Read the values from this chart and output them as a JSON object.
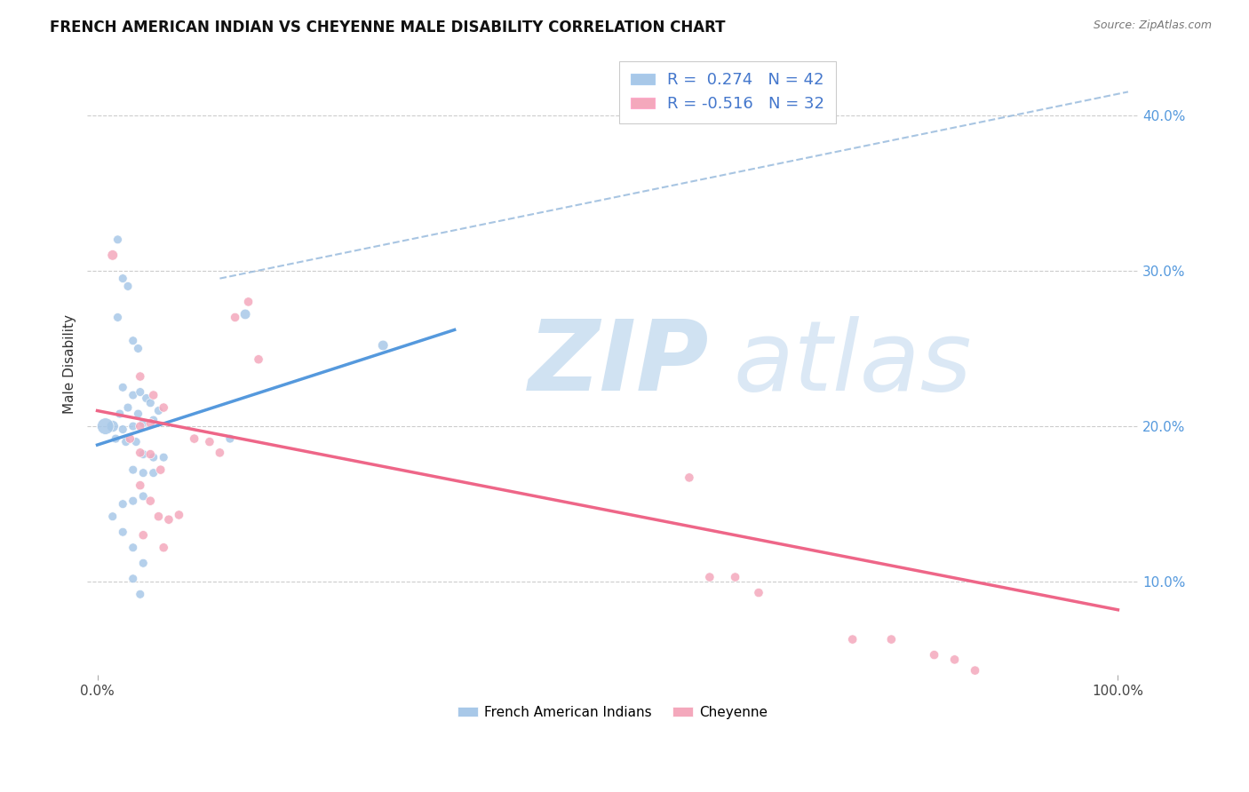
{
  "title": "FRENCH AMERICAN INDIAN VS CHEYENNE MALE DISABILITY CORRELATION CHART",
  "source": "Source: ZipAtlas.com",
  "ylabel": "Male Disability",
  "french_R": 0.274,
  "french_N": 42,
  "cheyenne_R": -0.516,
  "cheyenne_N": 32,
  "french_color": "#a8c8e8",
  "cheyenne_color": "#f4a8bc",
  "french_line_color": "#5599dd",
  "cheyenne_line_color": "#ee6688",
  "dashed_line_color": "#99bbdd",
  "watermark_color": "#ddeeff",
  "french_scatter": [
    [
      0.02,
      0.32
    ],
    [
      0.025,
      0.295
    ],
    [
      0.03,
      0.29
    ],
    [
      0.02,
      0.27
    ],
    [
      0.035,
      0.255
    ],
    [
      0.04,
      0.25
    ],
    [
      0.025,
      0.225
    ],
    [
      0.035,
      0.22
    ],
    [
      0.042,
      0.222
    ],
    [
      0.048,
      0.218
    ],
    [
      0.052,
      0.215
    ],
    [
      0.03,
      0.212
    ],
    [
      0.022,
      0.208
    ],
    [
      0.04,
      0.208
    ],
    [
      0.06,
      0.21
    ],
    [
      0.055,
      0.204
    ],
    [
      0.045,
      0.202
    ],
    [
      0.035,
      0.2
    ],
    [
      0.025,
      0.198
    ],
    [
      0.015,
      0.2
    ],
    [
      0.008,
      0.2
    ],
    [
      0.018,
      0.192
    ],
    [
      0.028,
      0.19
    ],
    [
      0.038,
      0.19
    ],
    [
      0.045,
      0.182
    ],
    [
      0.055,
      0.18
    ],
    [
      0.065,
      0.18
    ],
    [
      0.035,
      0.172
    ],
    [
      0.045,
      0.17
    ],
    [
      0.055,
      0.17
    ],
    [
      0.045,
      0.155
    ],
    [
      0.035,
      0.152
    ],
    [
      0.025,
      0.15
    ],
    [
      0.015,
      0.142
    ],
    [
      0.025,
      0.132
    ],
    [
      0.035,
      0.122
    ],
    [
      0.045,
      0.112
    ],
    [
      0.035,
      0.102
    ],
    [
      0.042,
      0.092
    ],
    [
      0.13,
      0.192
    ],
    [
      0.145,
      0.272
    ],
    [
      0.28,
      0.252
    ]
  ],
  "french_sizes": [
    50,
    50,
    50,
    50,
    50,
    50,
    50,
    50,
    50,
    50,
    50,
    50,
    50,
    50,
    50,
    50,
    50,
    50,
    50,
    90,
    180,
    50,
    50,
    50,
    50,
    50,
    50,
    50,
    50,
    50,
    50,
    50,
    50,
    50,
    50,
    50,
    50,
    50,
    50,
    50,
    70,
    70
  ],
  "cheyenne_scatter": [
    [
      0.015,
      0.31
    ],
    [
      0.042,
      0.232
    ],
    [
      0.055,
      0.22
    ],
    [
      0.065,
      0.212
    ],
    [
      0.052,
      0.202
    ],
    [
      0.042,
      0.2
    ],
    [
      0.032,
      0.192
    ],
    [
      0.042,
      0.183
    ],
    [
      0.052,
      0.182
    ],
    [
      0.062,
      0.172
    ],
    [
      0.042,
      0.162
    ],
    [
      0.052,
      0.152
    ],
    [
      0.06,
      0.142
    ],
    [
      0.07,
      0.14
    ],
    [
      0.08,
      0.143
    ],
    [
      0.095,
      0.192
    ],
    [
      0.11,
      0.19
    ],
    [
      0.12,
      0.183
    ],
    [
      0.135,
      0.27
    ],
    [
      0.148,
      0.28
    ],
    [
      0.158,
      0.243
    ],
    [
      0.045,
      0.13
    ],
    [
      0.065,
      0.122
    ],
    [
      0.58,
      0.167
    ],
    [
      0.6,
      0.103
    ],
    [
      0.625,
      0.103
    ],
    [
      0.648,
      0.093
    ],
    [
      0.74,
      0.063
    ],
    [
      0.778,
      0.063
    ],
    [
      0.82,
      0.053
    ],
    [
      0.84,
      0.05
    ],
    [
      0.86,
      0.043
    ]
  ],
  "cheyenne_sizes": [
    70,
    55,
    55,
    55,
    55,
    55,
    55,
    55,
    55,
    55,
    55,
    55,
    55,
    55,
    55,
    55,
    55,
    55,
    55,
    55,
    55,
    55,
    55,
    55,
    55,
    55,
    55,
    55,
    55,
    55,
    55,
    55
  ],
  "french_line": [
    [
      0.0,
      0.188
    ],
    [
      0.35,
      0.262
    ]
  ],
  "cheyenne_line": [
    [
      0.0,
      0.21
    ],
    [
      1.0,
      0.082
    ]
  ],
  "dashed_line": [
    [
      0.12,
      0.295
    ],
    [
      1.01,
      0.415
    ]
  ],
  "ylim": [
    0.04,
    0.44
  ],
  "xlim": [
    -0.01,
    1.02
  ],
  "yticks": [
    0.1,
    0.2,
    0.3,
    0.4
  ],
  "ytick_labels": [
    "10.0%",
    "20.0%",
    "30.0%",
    "40.0%"
  ]
}
